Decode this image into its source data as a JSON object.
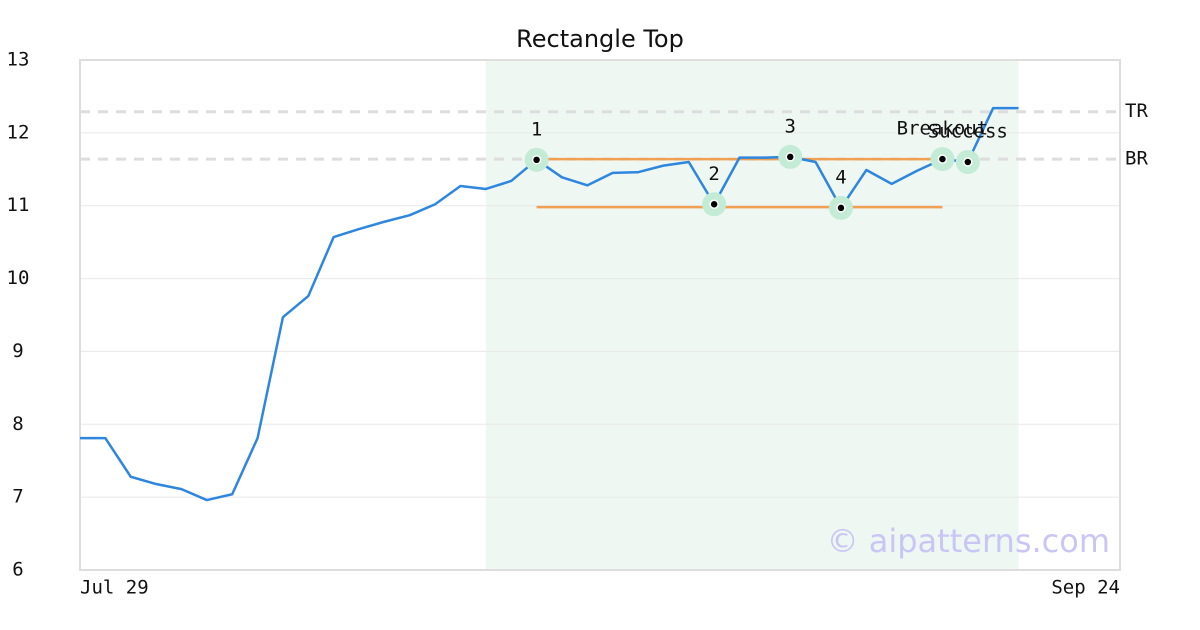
{
  "chart_data": {
    "type": "line",
    "title": "Rectangle Top",
    "categories": [
      "Jul 29",
      null,
      null,
      null,
      null,
      null,
      null,
      null,
      null,
      null,
      null,
      null,
      null,
      null,
      null,
      null,
      null,
      null,
      null,
      null,
      null,
      null,
      null,
      null,
      null,
      null,
      null,
      null,
      null,
      null,
      null,
      null,
      null,
      null,
      null,
      null,
      null,
      null,
      null,
      null,
      null,
      "Sep 24"
    ],
    "values": [
      7.81,
      7.81,
      7.28,
      7.18,
      7.11,
      6.96,
      7.04,
      7.81,
      9.47,
      9.76,
      10.57,
      10.68,
      10.78,
      10.87,
      11.02,
      11.27,
      11.23,
      11.34,
      11.63,
      11.39,
      11.28,
      11.45,
      11.46,
      11.55,
      11.6,
      11.02,
      11.66,
      11.66,
      11.67,
      11.6,
      10.97,
      11.49,
      11.3,
      11.48,
      11.64,
      11.6,
      12.34,
      12.34,
      null,
      null,
      null,
      null
    ],
    "color": "#2e86de",
    "ylim": [
      6,
      13
    ],
    "yticks": [
      6,
      7,
      8,
      9,
      10,
      11,
      12,
      13
    ],
    "grid": true,
    "highlight_range": [
      16,
      37
    ],
    "highlight_color": "#eef7f2",
    "levels": [
      {
        "value": 11.64,
        "from": 18,
        "to": 34,
        "color": "#f0a050"
      },
      {
        "value": 10.98,
        "from": 18,
        "to": 34,
        "color": "#f0a050"
      }
    ],
    "references": [
      {
        "label": "TR",
        "value": 12.29
      },
      {
        "label": "BR",
        "value": 11.64
      }
    ],
    "points": [
      {
        "label": "1",
        "index": 18,
        "value": 11.63
      },
      {
        "label": "2",
        "index": 25,
        "value": 11.02
      },
      {
        "label": "3",
        "index": 28,
        "value": 11.67
      },
      {
        "label": "4",
        "index": 30,
        "value": 10.97
      },
      {
        "label": "Breakout",
        "index": 34,
        "value": 11.64
      },
      {
        "label": "Success",
        "index": 35,
        "value": 11.6
      }
    ],
    "watermark": "© aipatterns.com"
  }
}
